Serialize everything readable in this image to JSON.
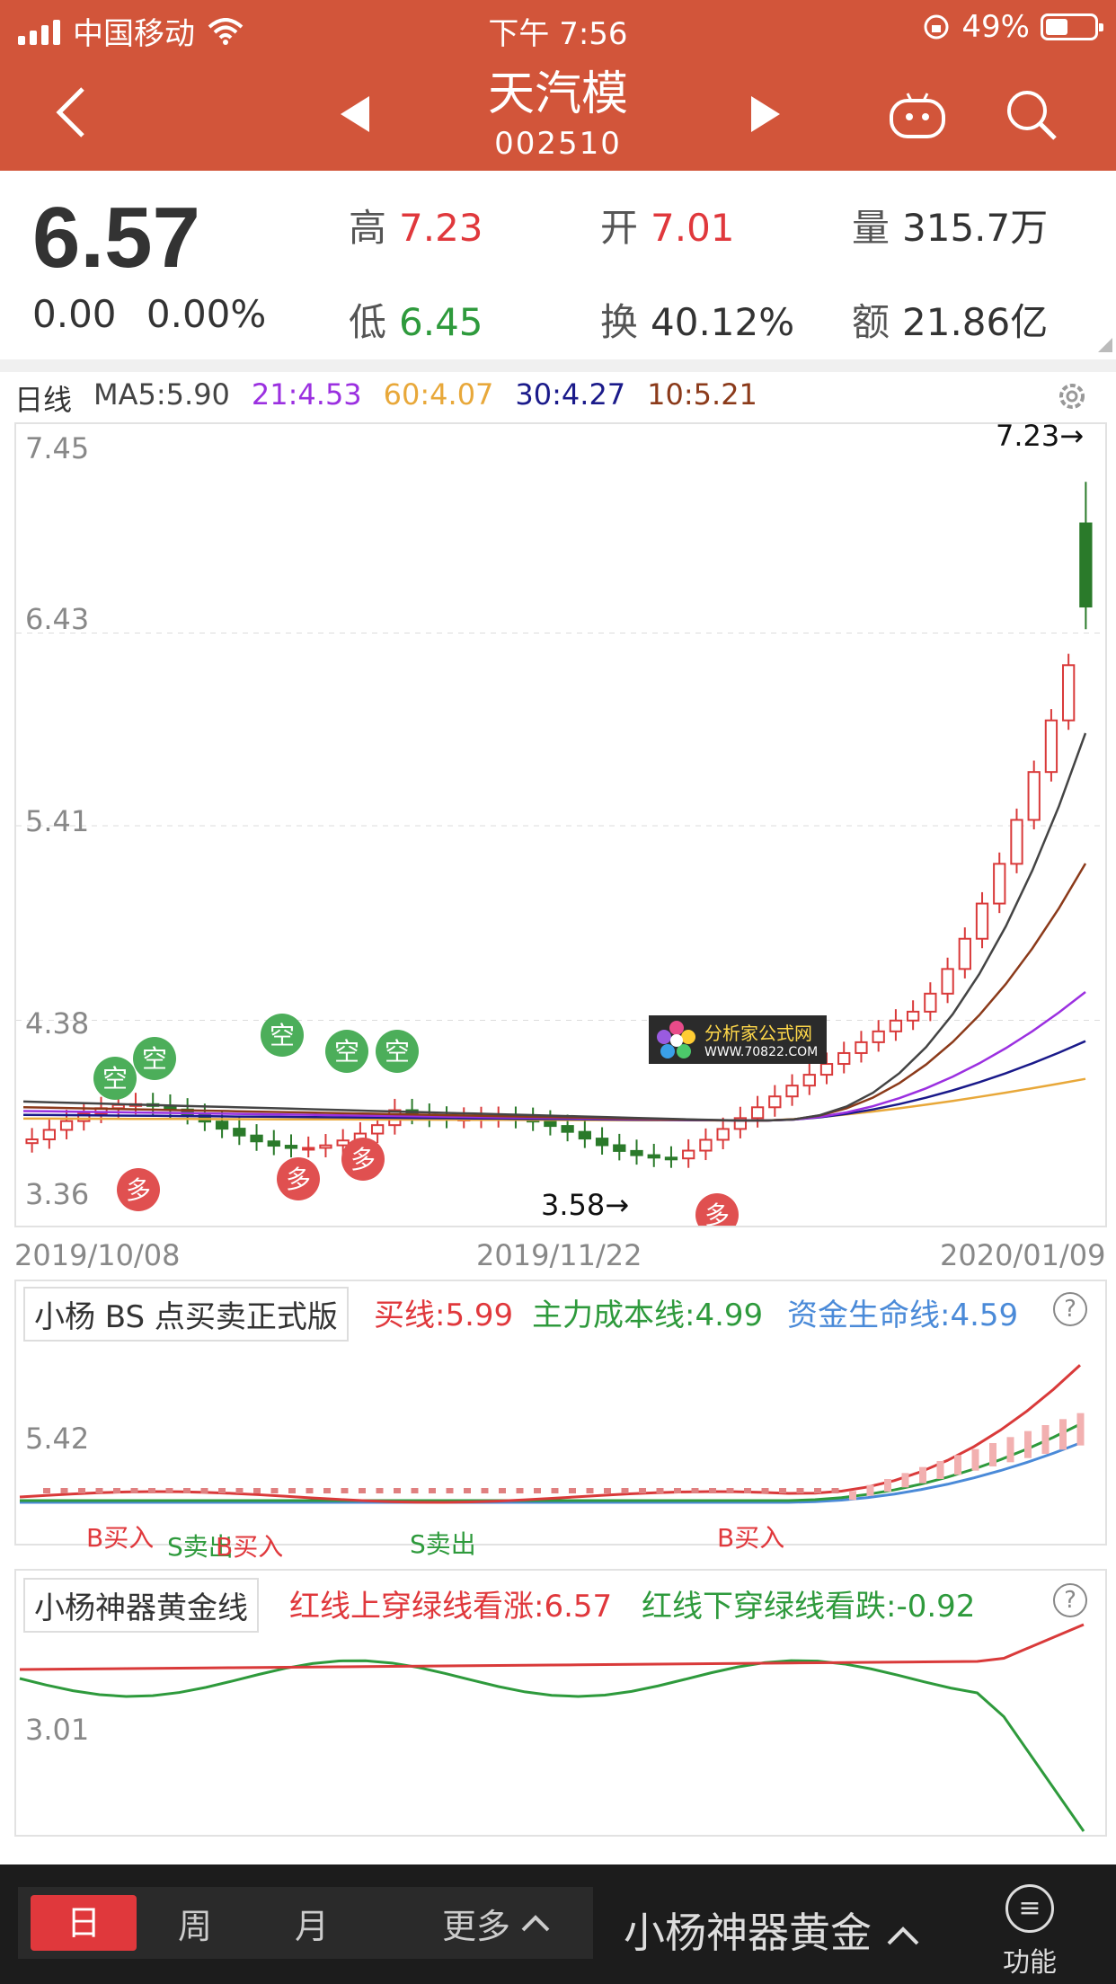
{
  "status": {
    "carrier": "中国移动",
    "time": "下午 7:56",
    "battery": "49%"
  },
  "nav": {
    "title": "天汽模",
    "code": "002510"
  },
  "quote": {
    "price": "6.57",
    "change": "0.00",
    "change_pct": "0.00%",
    "high_label": "高",
    "high": "7.23",
    "open_label": "开",
    "open": "7.01",
    "vol_label": "量",
    "vol": "315.7万",
    "low_label": "低",
    "low": "6.45",
    "turnover_label": "换",
    "turnover": "40.12%",
    "amount_label": "额",
    "amount": "21.86亿"
  },
  "ma": {
    "period": "日线",
    "ma5": "MA5:5.90",
    "ma21": "21:4.53",
    "ma60": "60:4.07",
    "ma30": "30:4.27",
    "ma10": "10:5.21",
    "colors": {
      "ma5": "#444444",
      "ma21": "#9b30e0",
      "ma60": "#e8a83a",
      "ma30": "#1a1a8a",
      "ma10": "#8b3a1a"
    }
  },
  "main_chart": {
    "y_labels": [
      "7.45",
      "6.43",
      "5.41",
      "4.38",
      "3.36"
    ],
    "high_mark": "7.23→",
    "low_mark": "3.58→",
    "dates": [
      "2019/10/08",
      "2019/11/22",
      "2020/01/09"
    ],
    "signal_kong": "空",
    "signal_duo": "多",
    "watermark_title": "分析家公式网",
    "watermark_url": "WWW.70822.COM"
  },
  "chart_data": {
    "type": "candlestick",
    "title": "",
    "ylim": [
      3.36,
      7.45
    ],
    "x_range": [
      "2019/10/08",
      "2020/01/09"
    ],
    "last": {
      "open": 7.01,
      "high": 7.23,
      "low": 6.45,
      "close": 6.57
    },
    "period_high": 7.23,
    "period_low": 3.58,
    "moving_averages": {
      "MA5": 5.9,
      "21": 4.53,
      "60": 4.07,
      "30": 4.27,
      "10": 5.21
    },
    "indicators": [
      {
        "name": "小杨 BS 点买卖正式版",
        "buy_line": 5.99,
        "cost_line": 4.99,
        "life_line": 4.59,
        "y_label": "5.42"
      },
      {
        "name": "小杨神器黄金线",
        "red_line": 6.57,
        "green_line": -0.92,
        "y_label": "3.01"
      }
    ]
  },
  "ind1": {
    "title": "小杨 BS 点买卖正式版",
    "buy": "买线:5.99",
    "cost": "主力成本线:4.99",
    "life": "资金生命线:4.59",
    "y_label": "5.42",
    "marks": [
      "B买入",
      "S卖出",
      "B买入",
      "S卖出",
      "B买入"
    ]
  },
  "ind2": {
    "title": "小杨神器黄金线",
    "up": "红线上穿绿线看涨:6.57",
    "down": "红线下穿绿线看跌:-0.92",
    "y_label": "3.01"
  },
  "bottom": {
    "tabs": [
      "日",
      "周",
      "月",
      "更多"
    ],
    "indicator": "小杨神器黄金",
    "func": "功能",
    "func_icon": "≡"
  }
}
